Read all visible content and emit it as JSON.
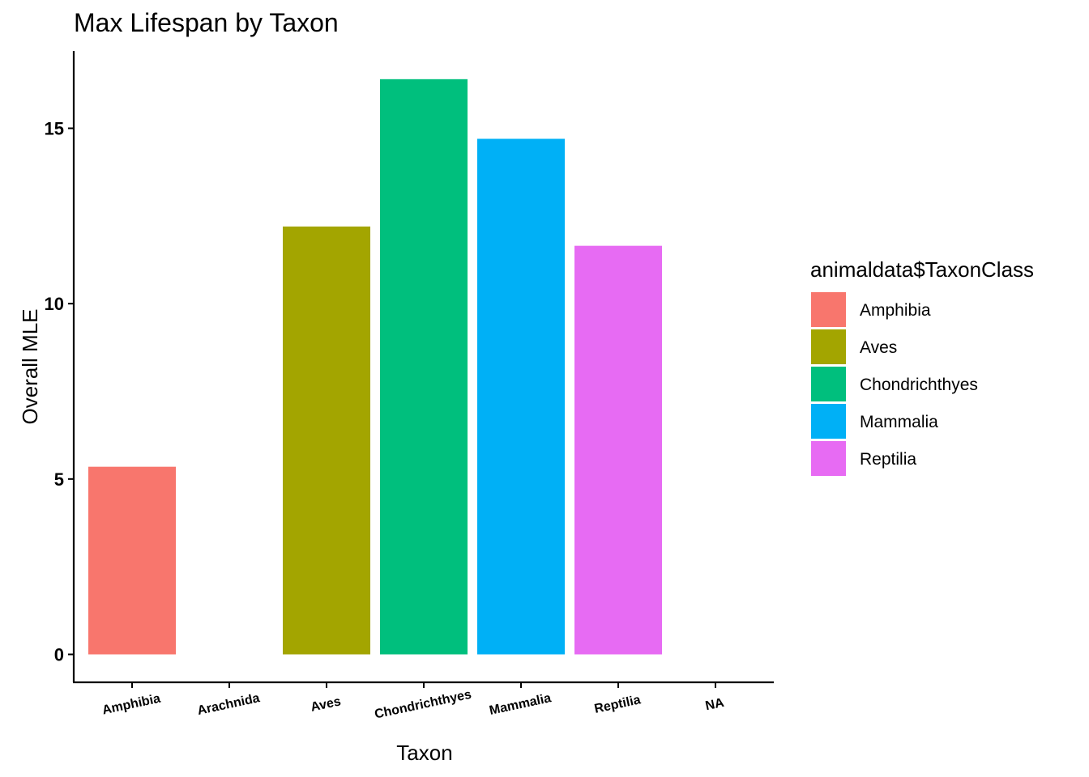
{
  "chart_data": {
    "type": "bar",
    "title": "Max Lifespan by Taxon",
    "xlabel": "Taxon",
    "ylabel": "Overall MLE",
    "categories": [
      "Amphibia",
      "Arachnida",
      "Aves",
      "Chondrichthyes",
      "Mammalia",
      "Reptilia",
      "NA"
    ],
    "values": [
      5.35,
      null,
      12.2,
      16.4,
      14.7,
      11.65,
      null
    ],
    "colors": [
      "#F8766D",
      null,
      "#A3A500",
      "#00BF7D",
      "#00B0F6",
      "#E76BF3",
      null
    ],
    "ylim": [
      -0.8,
      17.2
    ],
    "yticks": [
      0,
      5,
      10,
      15
    ],
    "grid": false,
    "legend": {
      "title": "animaldata$TaxonClass",
      "position": "right",
      "items": [
        {
          "label": "Amphibia",
          "color": "#F8766D"
        },
        {
          "label": "Aves",
          "color": "#A3A500"
        },
        {
          "label": "Chondrichthyes",
          "color": "#00BF7D"
        },
        {
          "label": "Mammalia",
          "color": "#00B0F6"
        },
        {
          "label": "Reptilia",
          "color": "#E76BF3"
        }
      ]
    }
  }
}
